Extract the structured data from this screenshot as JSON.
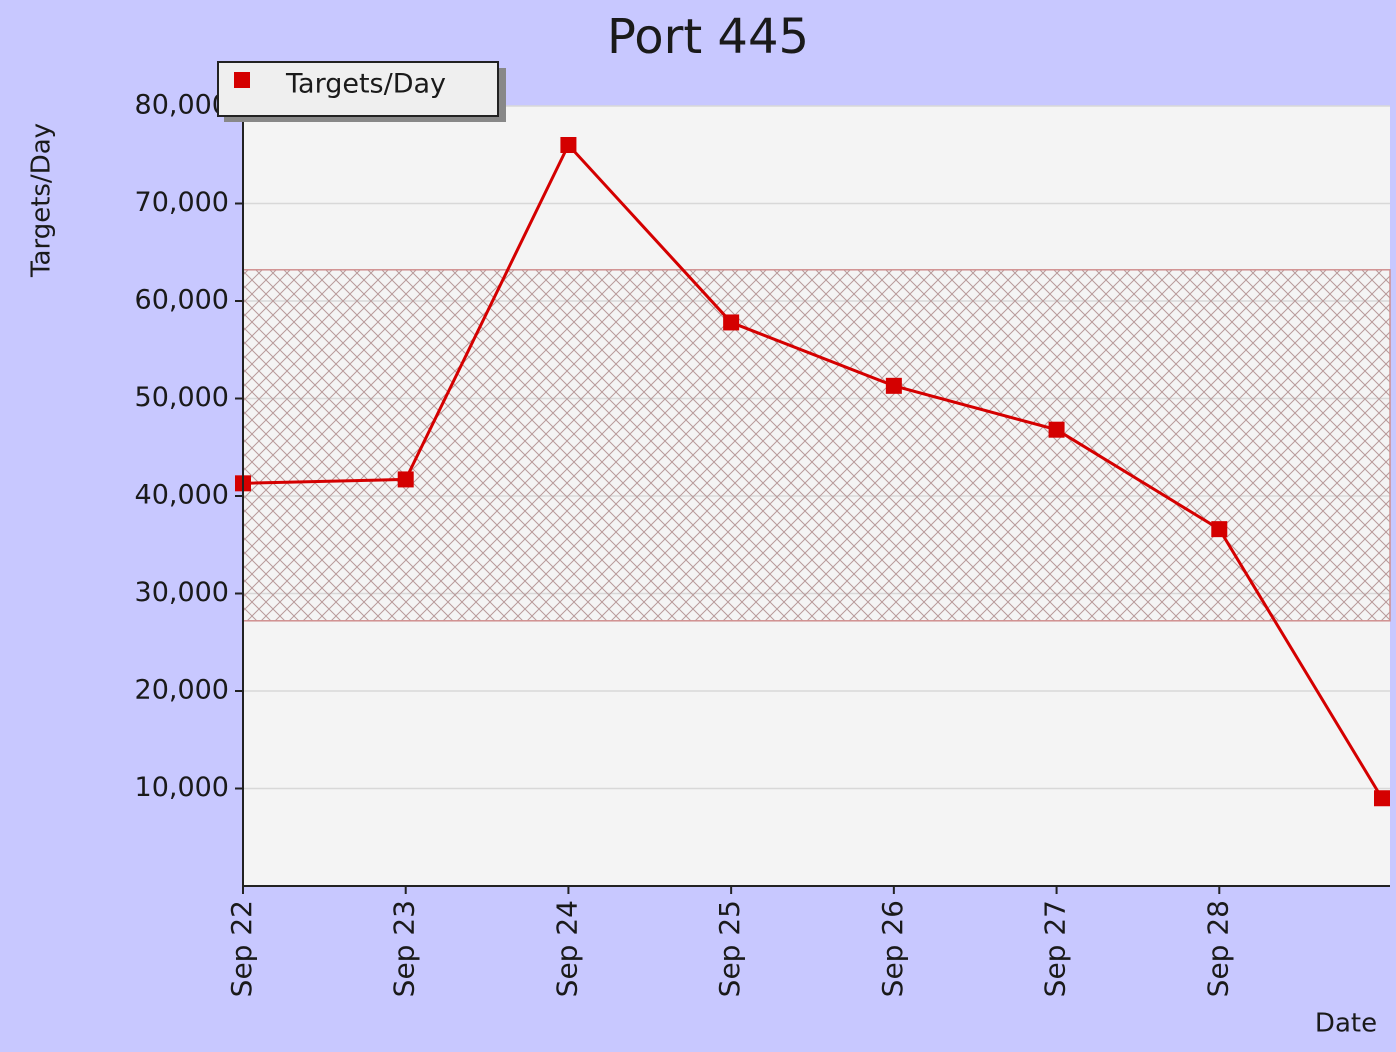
{
  "chart_data": {
    "type": "line",
    "title": "Port 445",
    "x_label": "Date",
    "y_label": "Targets/Day",
    "categories": [
      "Sep 22",
      "Sep 23",
      "Sep 24",
      "Sep 25",
      "Sep 26",
      "Sep 27",
      "Sep 28",
      null
    ],
    "series": [
      {
        "name": "Targets/Day",
        "color": "#d40000",
        "values": [
          41300,
          41700,
          76000,
          57800,
          51300,
          46800,
          36600,
          9000
        ]
      }
    ],
    "band": [
      27200,
      63200
    ],
    "ylim": [
      0,
      80000
    ],
    "yticks": [
      {
        "value": 10000,
        "label": "10,000"
      },
      {
        "value": 20000,
        "label": "20,000"
      },
      {
        "value": 30000,
        "label": "30,000"
      },
      {
        "value": 40000,
        "label": "40,000"
      },
      {
        "value": 50000,
        "label": "50,000"
      },
      {
        "value": 60000,
        "label": "60,000"
      },
      {
        "value": 70000,
        "label": "70,000"
      },
      {
        "value": 80000,
        "label": "80,000"
      }
    ],
    "grid": true,
    "legend": "upper left"
  }
}
